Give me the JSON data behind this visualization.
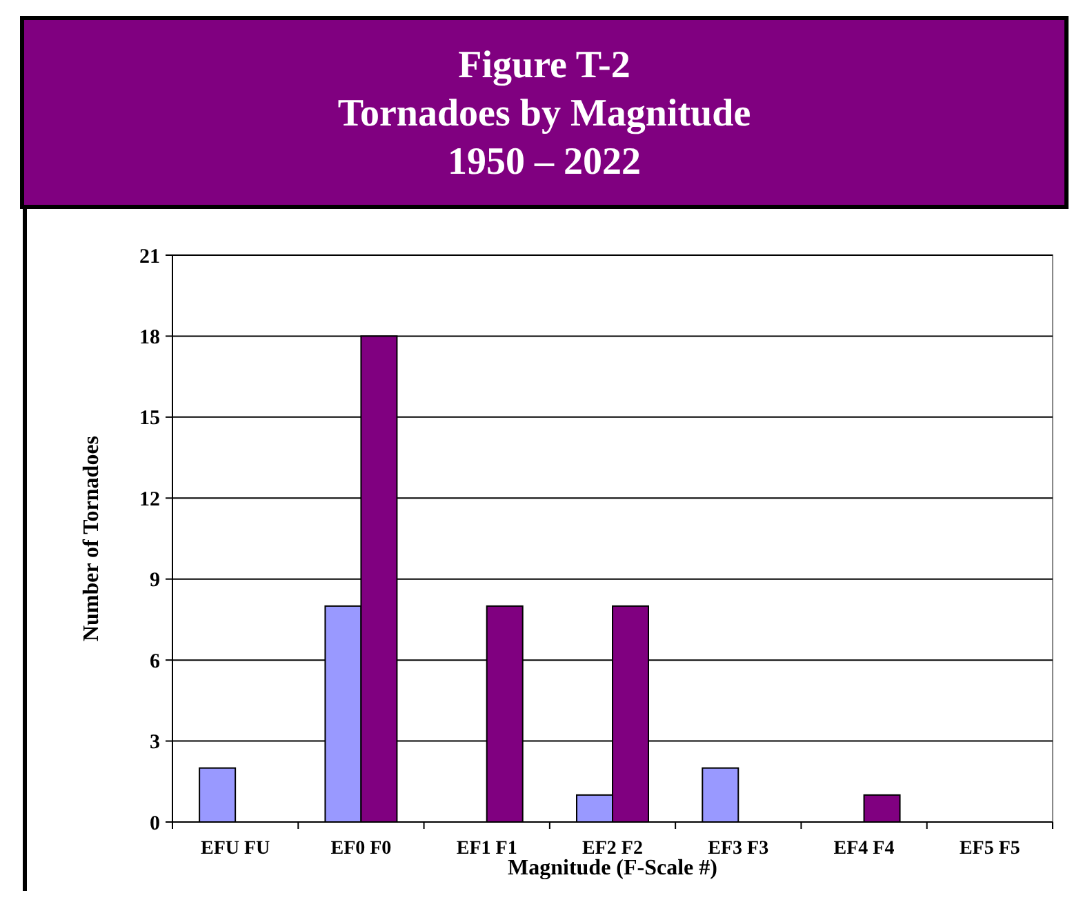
{
  "chart_data": {
    "type": "bar",
    "title": "Figure T-2\nTornadoes by Magnitude\n1950 – 2022",
    "xlabel": "Magnitude (F-Scale #)",
    "ylabel": "Number of Tornadoes",
    "categories": [
      "EFU FU",
      "EF0 F0",
      "EF1 F1",
      "EF2 F2",
      "EF3 F3",
      "EF4 F4",
      "EF5 F5"
    ],
    "series": [
      {
        "color": "#9999ff",
        "values": [
          2,
          8,
          0,
          1,
          2,
          0,
          0
        ]
      },
      {
        "color": "#800080",
        "values": [
          0,
          18,
          8,
          8,
          0,
          1,
          0
        ]
      }
    ],
    "ylim": [
      0,
      21
    ],
    "yticks": [
      0,
      3,
      6,
      9,
      12,
      15,
      18,
      21
    ],
    "grid": "y"
  }
}
